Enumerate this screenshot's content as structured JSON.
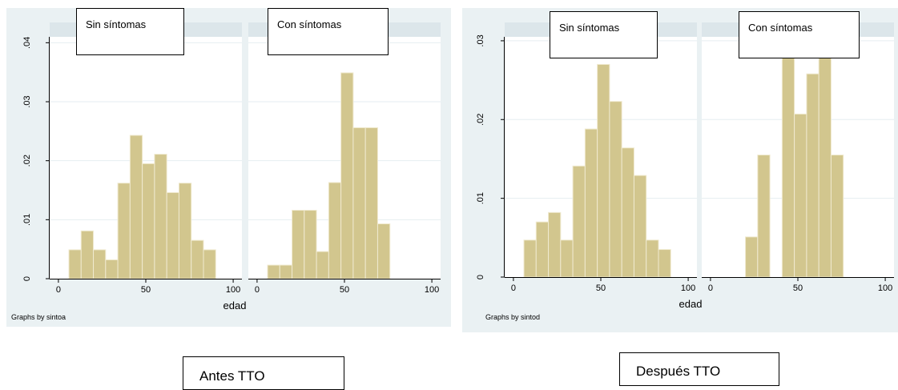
{
  "colors": {
    "background": "#ffffff",
    "outer_panel": "#eaf1f3",
    "plot_area": "#ffffff",
    "strip": "#dce6ea",
    "bar_fill": "#d2c68e",
    "bar_edge": "#f0ead0",
    "gridline": "#e6eef1",
    "axis": "#000000"
  },
  "captions": {
    "left": "Antes TTO",
    "right": "Después TTO"
  },
  "chart_data": [
    {
      "type": "bar",
      "note": "Graphs by sintoa",
      "xlabel": "edad",
      "ylabel": "",
      "ylim": [
        0,
        0.041
      ],
      "yticks": [
        0,
        0.01,
        0.02,
        0.03,
        0.04
      ],
      "yticklabels": [
        "0",
        ".01",
        ".02",
        ".03",
        ".04"
      ],
      "xlim": [
        -5,
        105
      ],
      "xticks": [
        0,
        50,
        100
      ],
      "xticklabels": [
        "0",
        "50",
        "100"
      ],
      "grid": true,
      "panels": [
        {
          "title": "Sin síntomas",
          "bin_width": 7,
          "bin_starts": [
            6,
            13,
            20,
            27,
            34,
            41,
            48,
            55,
            62,
            69,
            76,
            83
          ],
          "values": [
            0.0049,
            0.0081,
            0.0049,
            0.0032,
            0.0162,
            0.0243,
            0.0195,
            0.0211,
            0.0146,
            0.0162,
            0.0065,
            0.0049
          ]
        },
        {
          "title": "Con síntomas",
          "bin_width": 7,
          "bin_starts": [
            6,
            13,
            20,
            27,
            34,
            41,
            48,
            55,
            62,
            69
          ],
          "values": [
            0.0023,
            0.0023,
            0.0116,
            0.0116,
            0.0046,
            0.0163,
            0.0349,
            0.0256,
            0.0256,
            0.0093
          ]
        }
      ]
    },
    {
      "type": "bar",
      "note": "Graphs by sintod",
      "xlabel": "edad",
      "ylabel": "",
      "ylim": [
        0,
        0.0305
      ],
      "yticks": [
        0,
        0.01,
        0.02,
        0.03
      ],
      "yticklabels": [
        "0",
        ".01",
        ".02",
        ".03"
      ],
      "xlim": [
        -5,
        105
      ],
      "xticks": [
        0,
        50,
        100
      ],
      "xticklabels": [
        "0",
        "50",
        "100"
      ],
      "grid": true,
      "panels": [
        {
          "title": "Sin síntomas",
          "bin_width": 7,
          "bin_starts": [
            6,
            13,
            20,
            27,
            34,
            41,
            48,
            55,
            62,
            69,
            76,
            83
          ],
          "values": [
            0.0047,
            0.007,
            0.0082,
            0.0047,
            0.0141,
            0.0188,
            0.027,
            0.0223,
            0.0164,
            0.0129,
            0.0047,
            0.0035
          ]
        },
        {
          "title": "Con síntomas",
          "bin_width": 7,
          "bin_starts": [
            20,
            27,
            34,
            41,
            48,
            55,
            62,
            69
          ],
          "values": [
            0.0051,
            0.0155,
            0,
            0.031,
            0.0207,
            0.0258,
            0.031,
            0.0155
          ]
        }
      ]
    }
  ]
}
